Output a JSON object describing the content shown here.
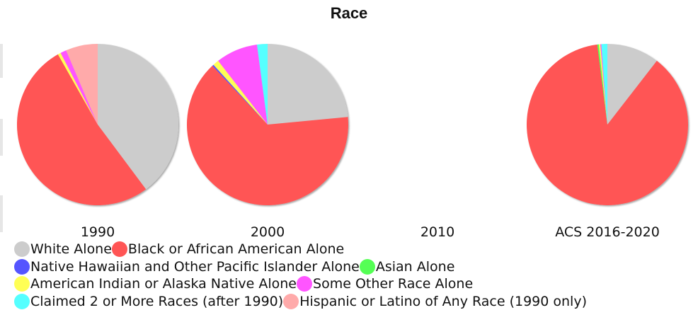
{
  "title": "Race",
  "colors": {
    "White Alone": "#cccccc",
    "Black or African American Alone": "#ff5555",
    "Native Hawaiian and Other Pacific Islander Alone": "#5555ff",
    "Asian Alone": "#55ff55",
    "American Indian or Alaska Native Alone": "#ffff55",
    "Some Other Race Alone": "#ff55ff",
    "Claimed 2 or More Races (after 1990)": "#55ffff",
    "Hispanic or Latino of Any Race (1990 only)": "#ffaaaa"
  },
  "legend_rows": [
    [
      "White Alone",
      "Black or African American Alone"
    ],
    [
      "Native Hawaiian and Other Pacific Islander Alone",
      "Asian Alone"
    ],
    [
      "American Indian or Alaska Native Alone",
      "Some Other Race Alone"
    ],
    [
      "Claimed 2 or More Races (after 1990)",
      "Hispanic or Latino of Any Race (1990 only)"
    ]
  ],
  "chart_data": {
    "type": "pie",
    "title": "Race",
    "legend_position": "bottom",
    "pies": [
      {
        "label": "1990",
        "slices": [
          {
            "name": "White Alone",
            "value": 39.8
          },
          {
            "name": "Black or African American Alone",
            "value": 52.0
          },
          {
            "name": "American Indian or Alaska Native Alone",
            "value": 0.6
          },
          {
            "name": "Some Other Race Alone",
            "value": 1.2
          },
          {
            "name": "Hispanic or Latino of Any Race (1990 only)",
            "value": 6.4
          }
        ]
      },
      {
        "label": "2000",
        "slices": [
          {
            "name": "White Alone",
            "value": 23.5
          },
          {
            "name": "Black or African American Alone",
            "value": 64.5
          },
          {
            "name": "Native Hawaiian and Other Pacific Islander Alone",
            "value": 0.3
          },
          {
            "name": "American Indian or Alaska Native Alone",
            "value": 1.2
          },
          {
            "name": "Some Other Race Alone",
            "value": 8.4
          },
          {
            "name": "Claimed 2 or More Races (after 1990)",
            "value": 2.1
          }
        ]
      },
      {
        "label": "2010",
        "slices": []
      },
      {
        "label": "ACS 2016-2020",
        "slices": [
          {
            "name": "White Alone",
            "value": 10.5
          },
          {
            "name": "Black or African American Alone",
            "value": 87.5
          },
          {
            "name": "Asian Alone",
            "value": 0.3
          },
          {
            "name": "American Indian or Alaska Native Alone",
            "value": 0.3
          },
          {
            "name": "Some Other Race Alone",
            "value": 0.2
          },
          {
            "name": "Claimed 2 or More Races (after 1990)",
            "value": 1.2
          }
        ]
      }
    ]
  }
}
